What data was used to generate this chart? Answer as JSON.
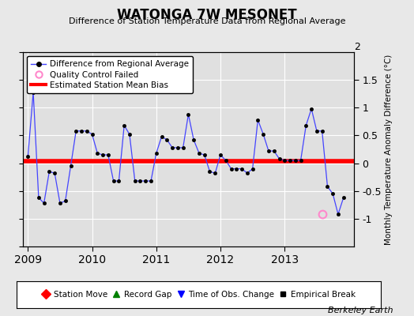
{
  "title": "WATONGA 7W MESONET",
  "subtitle": "Difference of Station Temperature Data from Regional Average",
  "ylabel_right": "Monthly Temperature Anomaly Difference (°C)",
  "bias": 0.03,
  "ylim": [
    -1.5,
    2.0
  ],
  "yticks": [
    -1.0,
    -0.5,
    0.0,
    0.5,
    1.0,
    1.5
  ],
  "yticklabels": [
    "-1",
    "-0.5",
    "0",
    "0.5",
    "1",
    "1.5"
  ],
  "background_color": "#e8e8e8",
  "plot_bg_color": "#e0e0e0",
  "line_color": "#4444ff",
  "bias_color": "#ff0000",
  "qc_color": "#ff88cc",
  "times": [
    2009.0,
    2009.083,
    2009.167,
    2009.25,
    2009.333,
    2009.417,
    2009.5,
    2009.583,
    2009.667,
    2009.75,
    2009.833,
    2009.917,
    2010.0,
    2010.083,
    2010.167,
    2010.25,
    2010.333,
    2010.417,
    2010.5,
    2010.583,
    2010.667,
    2010.75,
    2010.833,
    2010.917,
    2011.0,
    2011.083,
    2011.167,
    2011.25,
    2011.333,
    2011.417,
    2011.5,
    2011.583,
    2011.667,
    2011.75,
    2011.833,
    2011.917,
    2012.0,
    2012.083,
    2012.167,
    2012.25,
    2012.333,
    2012.417,
    2012.5,
    2012.583,
    2012.667,
    2012.75,
    2012.833,
    2012.917,
    2013.0,
    2013.083,
    2013.167,
    2013.25,
    2013.333,
    2013.417,
    2013.5,
    2013.583,
    2013.667,
    2013.75,
    2013.833,
    2013.917
  ],
  "values": [
    0.12,
    1.28,
    -0.62,
    -0.72,
    -0.15,
    -0.18,
    -0.72,
    -0.68,
    -0.05,
    0.58,
    0.58,
    0.58,
    0.52,
    0.18,
    0.15,
    0.15,
    -0.32,
    -0.32,
    0.68,
    0.52,
    -0.32,
    -0.32,
    -0.32,
    -0.32,
    0.18,
    0.48,
    0.42,
    0.28,
    0.28,
    0.28,
    0.88,
    0.42,
    0.18,
    0.15,
    -0.15,
    -0.18,
    0.15,
    0.05,
    -0.1,
    -0.1,
    -0.1,
    -0.18,
    -0.1,
    0.78,
    0.52,
    0.22,
    0.22,
    0.08,
    0.05,
    0.05,
    0.05,
    0.05,
    0.68,
    0.98,
    0.58,
    0.58,
    -0.42,
    -0.55,
    -0.92,
    -0.62
  ],
  "qc_failed_times": [
    2013.583
  ],
  "qc_failed_values": [
    -0.92
  ],
  "xlim": [
    2008.92,
    2014.08
  ],
  "xticks": [
    2009,
    2010,
    2011,
    2012,
    2013
  ],
  "berkeley_earth_text": "Berkeley Earth"
}
